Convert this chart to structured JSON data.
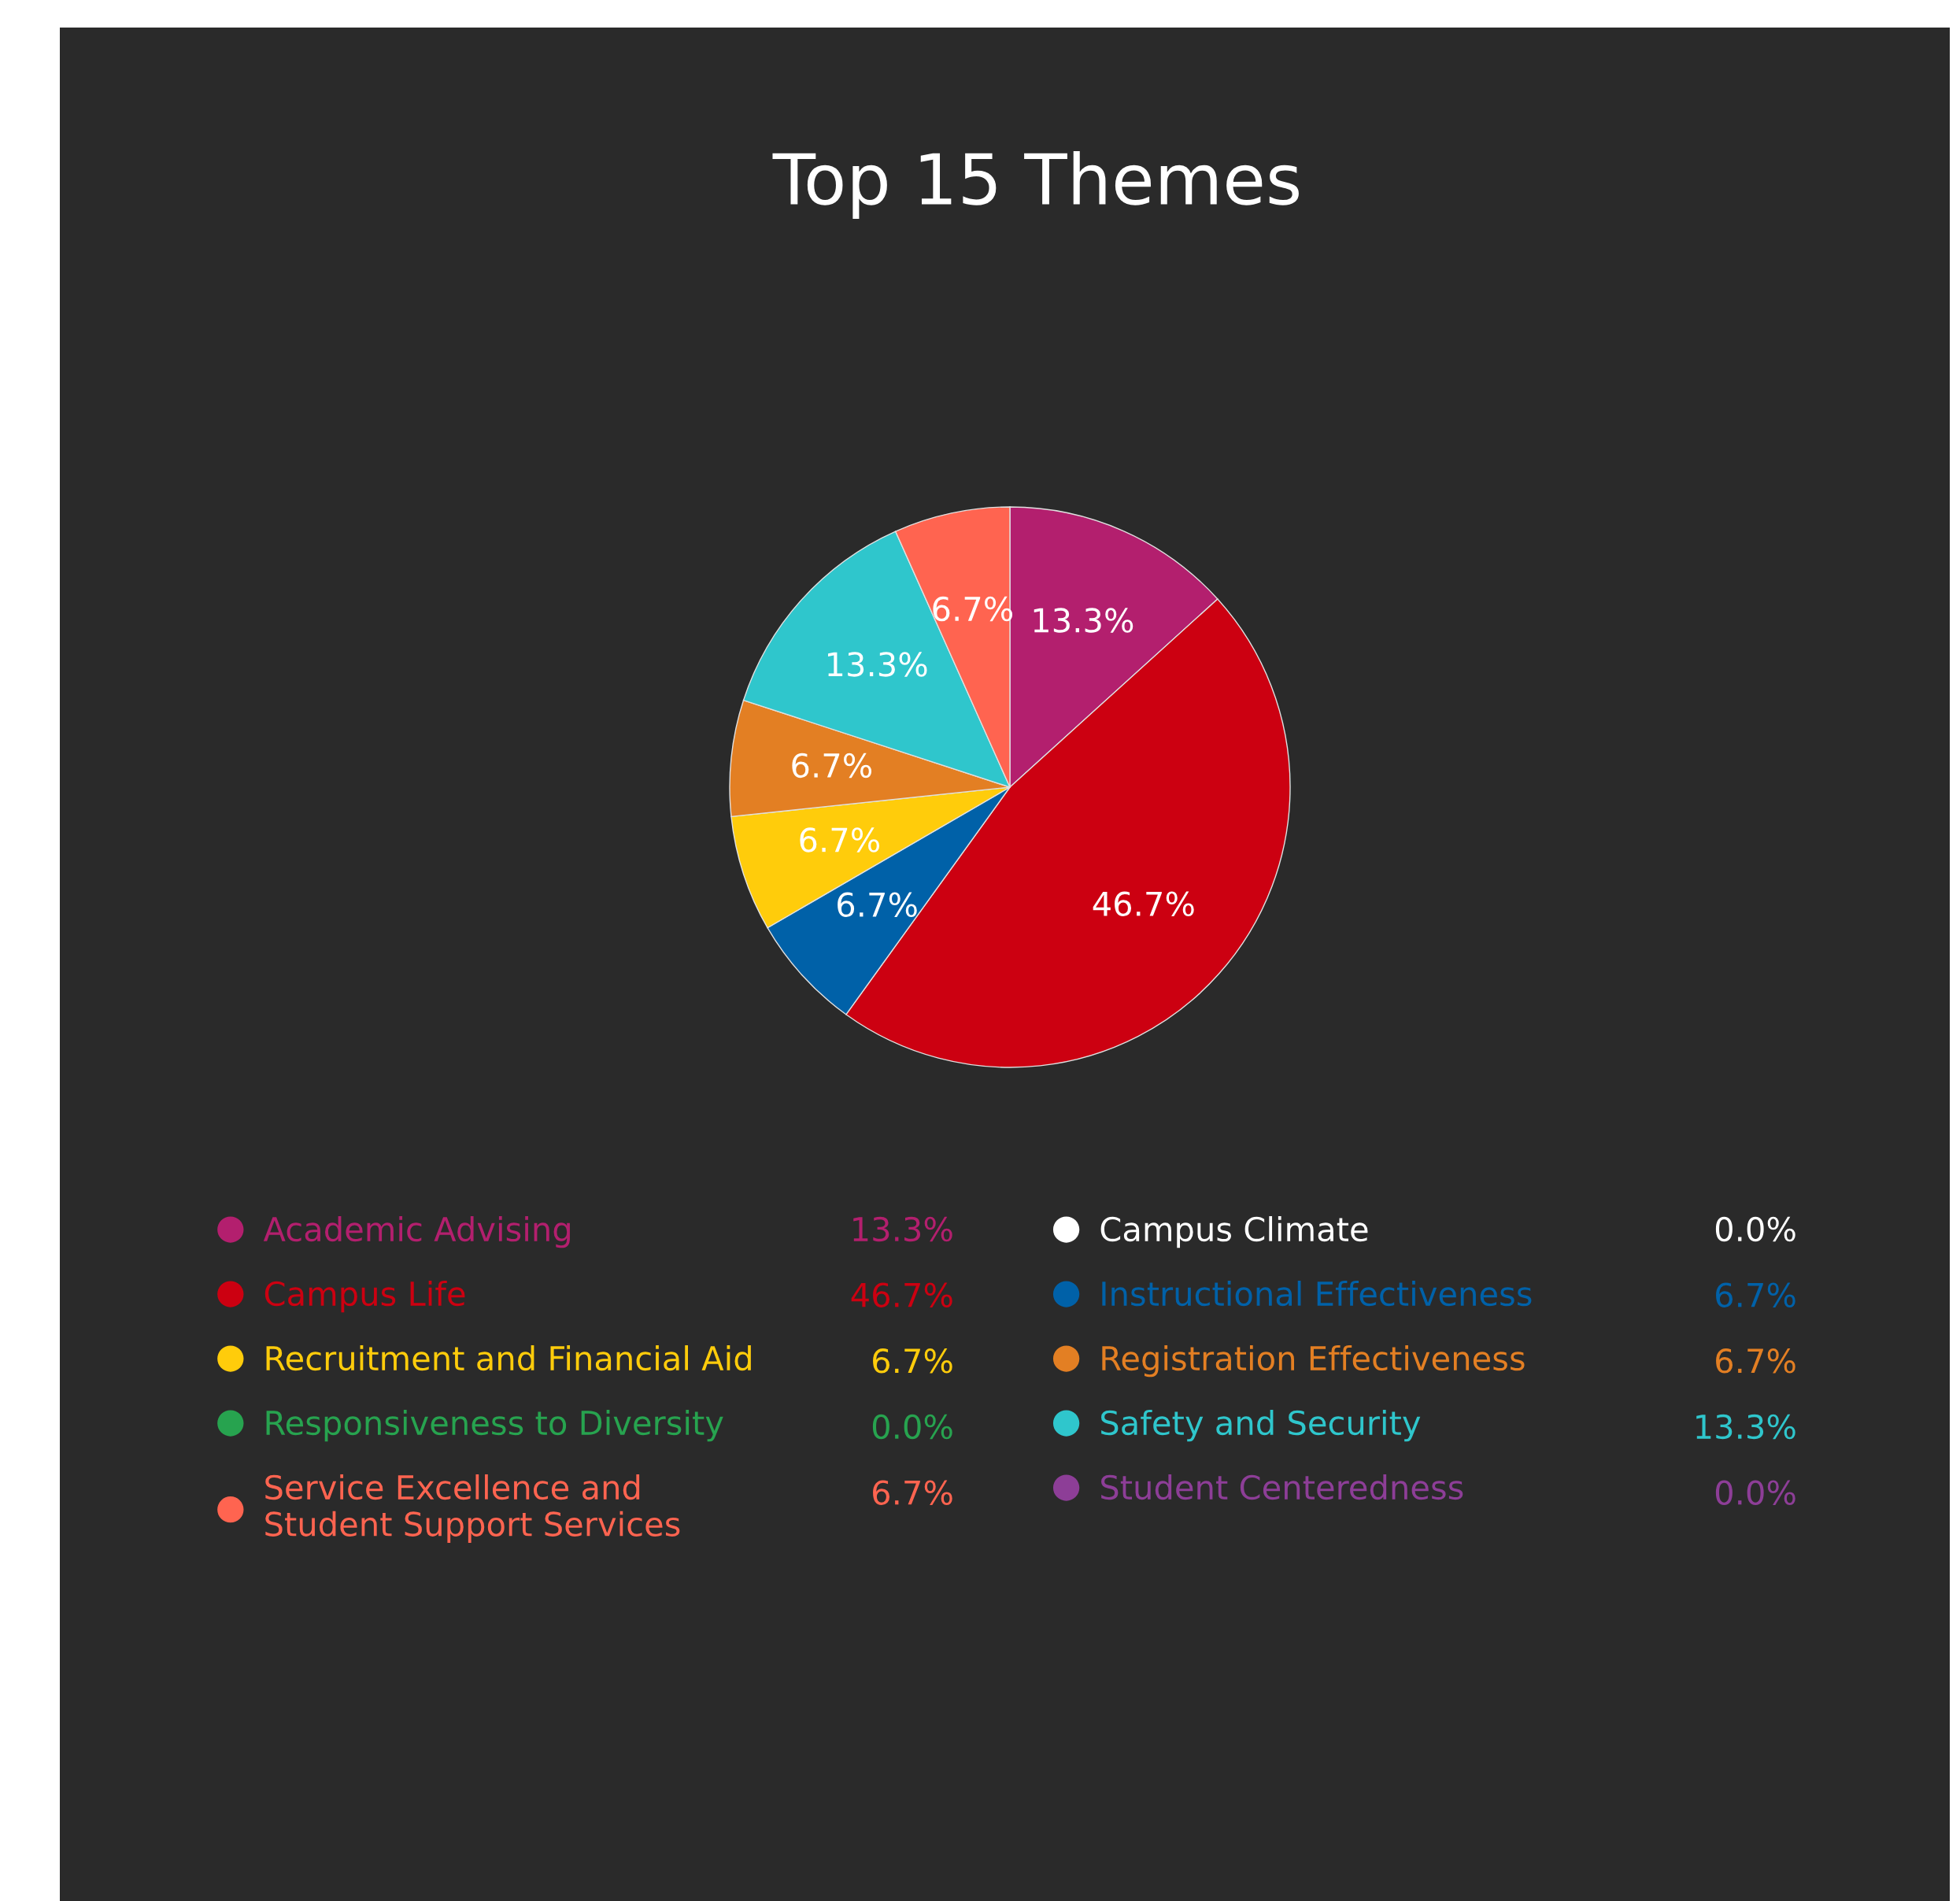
{
  "chart_data": {
    "type": "pie",
    "title": "Top 15 Themes",
    "categories": [
      "Academic Advising",
      "Campus Climate",
      "Campus Life",
      "Instructional Effectiveness",
      "Recruitment and Financial Aid",
      "Registration Effectiveness",
      "Responsiveness to Diversity",
      "Safety and Security",
      "Service Excellence and Student Support Services",
      "Student Centeredness"
    ],
    "values": [
      13.3,
      0.0,
      46.7,
      6.7,
      6.7,
      6.7,
      0.0,
      13.3,
      6.7,
      0.0
    ],
    "value_labels": [
      "13.3%",
      "0.0%",
      "46.7%",
      "6.7%",
      "6.7%",
      "6.7%",
      "0.0%",
      "13.3%",
      "6.7%",
      "0.0%"
    ],
    "colors": [
      "#b31f6e",
      "#ffffff",
      "#cc0011",
      "#0061a8",
      "#ffcc0b",
      "#e37f23",
      "#27a34f",
      "#2fc6cc",
      "#ff6450",
      "#8d3e97"
    ],
    "legend": "bottom"
  }
}
